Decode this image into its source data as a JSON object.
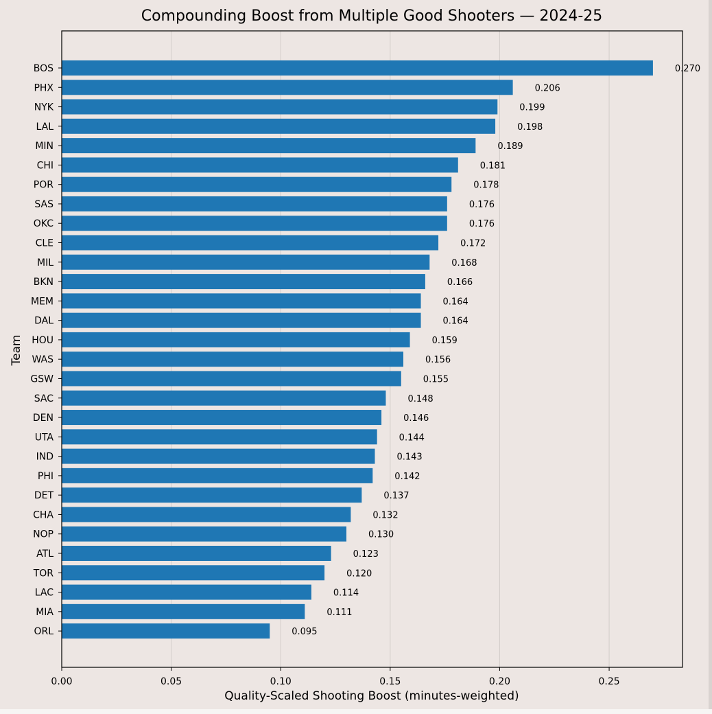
{
  "chart_data": {
    "type": "bar",
    "orientation": "horizontal",
    "title": "Compounding Boost from Multiple Good Shooters — 2024-25",
    "xlabel": "Quality-Scaled Shooting Boost (minutes-weighted)",
    "ylabel": "Team",
    "xlim": [
      0,
      0.2835
    ],
    "xticks": [
      "0.00",
      "0.05",
      "0.10",
      "0.15",
      "0.20",
      "0.25"
    ],
    "grid": "x",
    "bar_color": "#1f77b4",
    "background": "#ede6e3",
    "categories": [
      "BOS",
      "PHX",
      "NYK",
      "LAL",
      "MIN",
      "CHI",
      "POR",
      "SAS",
      "OKC",
      "CLE",
      "MIL",
      "BKN",
      "MEM",
      "DAL",
      "HOU",
      "WAS",
      "GSW",
      "SAC",
      "DEN",
      "UTA",
      "IND",
      "PHI",
      "DET",
      "CHA",
      "NOP",
      "ATL",
      "TOR",
      "LAC",
      "MIA",
      "ORL"
    ],
    "values": [
      0.27,
      0.206,
      0.199,
      0.198,
      0.189,
      0.181,
      0.178,
      0.176,
      0.176,
      0.172,
      0.168,
      0.166,
      0.164,
      0.164,
      0.159,
      0.156,
      0.155,
      0.148,
      0.146,
      0.144,
      0.143,
      0.142,
      0.137,
      0.132,
      0.13,
      0.123,
      0.12,
      0.114,
      0.111,
      0.095
    ],
    "value_labels": [
      "0.270",
      "0.206",
      "0.199",
      "0.198",
      "0.189",
      "0.181",
      "0.178",
      "0.176",
      "0.176",
      "0.172",
      "0.168",
      "0.166",
      "0.164",
      "0.164",
      "0.159",
      "0.156",
      "0.155",
      "0.148",
      "0.146",
      "0.144",
      "0.143",
      "0.142",
      "0.137",
      "0.132",
      "0.130",
      "0.123",
      "0.120",
      "0.114",
      "0.111",
      "0.095"
    ]
  }
}
